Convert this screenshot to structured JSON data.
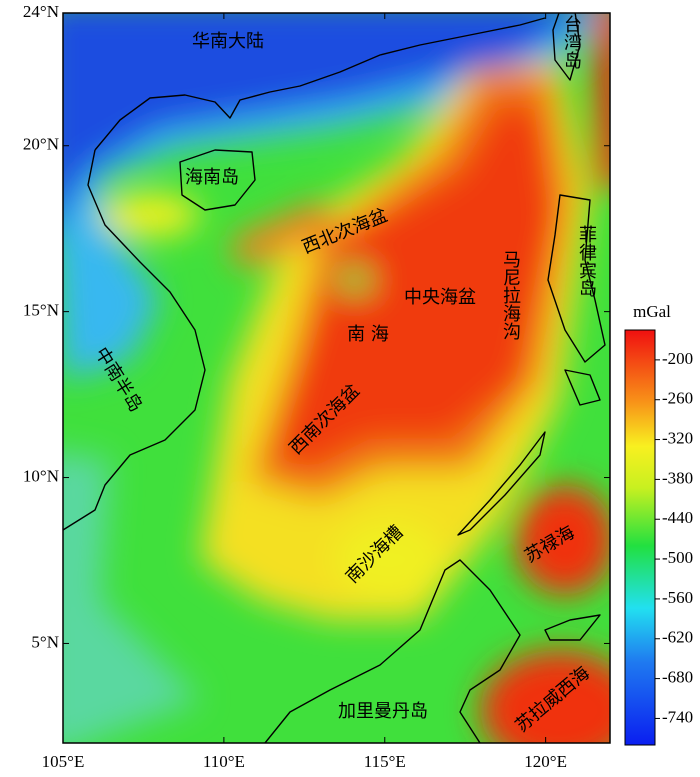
{
  "map": {
    "xlim": [
      105,
      122
    ],
    "ylim": [
      2,
      24
    ],
    "xticks": [
      {
        "value": 105,
        "label": "105°E"
      },
      {
        "value": 110,
        "label": "110°E"
      },
      {
        "value": 115,
        "label": "115°E"
      },
      {
        "value": 120,
        "label": "120°E"
      }
    ],
    "yticks": [
      {
        "value": 5,
        "label": "5°N"
      },
      {
        "value": 10,
        "label": "10°N"
      },
      {
        "value": 15,
        "label": "15°N"
      },
      {
        "value": 20,
        "label": "20°N"
      },
      {
        "value": 24,
        "label": "24°N"
      }
    ],
    "labels": [
      "华南大陆",
      "海南岛",
      "西北次海盆",
      "中央海盆",
      "南 海",
      "马尼拉海沟",
      "菲律宾岛",
      "中南半岛",
      "西南次海盆",
      "南沙海槽",
      "苏禄海",
      "加里曼丹岛",
      "苏拉威西海",
      "台湾岛"
    ]
  },
  "colorbar": {
    "unit": "mGal",
    "lim": [
      -780,
      -155
    ],
    "ticks": [
      -200,
      -260,
      -320,
      -380,
      -440,
      -500,
      -560,
      -620,
      -680,
      -740
    ]
  }
}
